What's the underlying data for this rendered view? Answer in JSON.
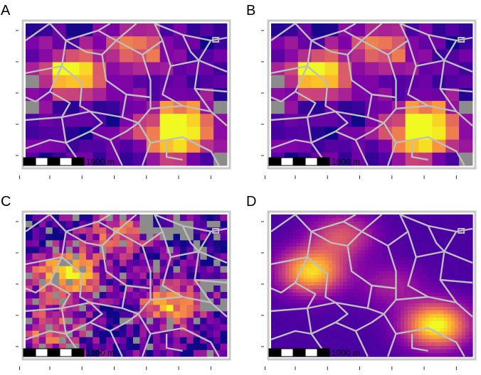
{
  "panels": [
    {
      "id": "A",
      "label": "A",
      "scalebar_text": "1000 m",
      "style": "coarse",
      "seed": 11,
      "hotspots": [
        [
          0.22,
          0.35,
          0.9
        ],
        [
          0.78,
          0.68,
          0.8
        ],
        [
          0.72,
          0.82,
          0.6
        ],
        [
          0.55,
          0.18,
          0.6
        ]
      ]
    },
    {
      "id": "B",
      "label": "B",
      "scalebar_text": "1000 m",
      "style": "coarse",
      "seed": 11,
      "hotspots": [
        [
          0.22,
          0.35,
          0.9
        ],
        [
          0.78,
          0.68,
          0.8
        ],
        [
          0.72,
          0.82,
          0.6
        ],
        [
          0.55,
          0.18,
          0.6
        ]
      ]
    },
    {
      "id": "C",
      "label": "C",
      "scalebar_text": "1000 m",
      "style": "fine",
      "seed": 29,
      "hotspots": [
        [
          0.2,
          0.42,
          0.95
        ],
        [
          0.73,
          0.63,
          0.7
        ],
        [
          0.46,
          0.13,
          0.45
        ],
        [
          0.12,
          0.8,
          0.5
        ]
      ]
    },
    {
      "id": "D",
      "label": "D",
      "scalebar_text": "1000 m",
      "style": "smooth",
      "seed": 5,
      "hotspots": [
        [
          0.2,
          0.4,
          0.85
        ],
        [
          0.82,
          0.78,
          0.95
        ],
        [
          0.35,
          0.15,
          0.45
        ],
        [
          0.6,
          0.5,
          0.25
        ]
      ]
    }
  ],
  "colors": {
    "background": "#ffffff",
    "boundary": "#bebebe",
    "missing": "#8c8c8c",
    "frame": "#c8c8c8",
    "palette": [
      "#0d0887",
      "#4c02a1",
      "#7e03a8",
      "#a92395",
      "#cc4778",
      "#e56b5d",
      "#f89441",
      "#fdc328",
      "#f0f921"
    ]
  }
}
